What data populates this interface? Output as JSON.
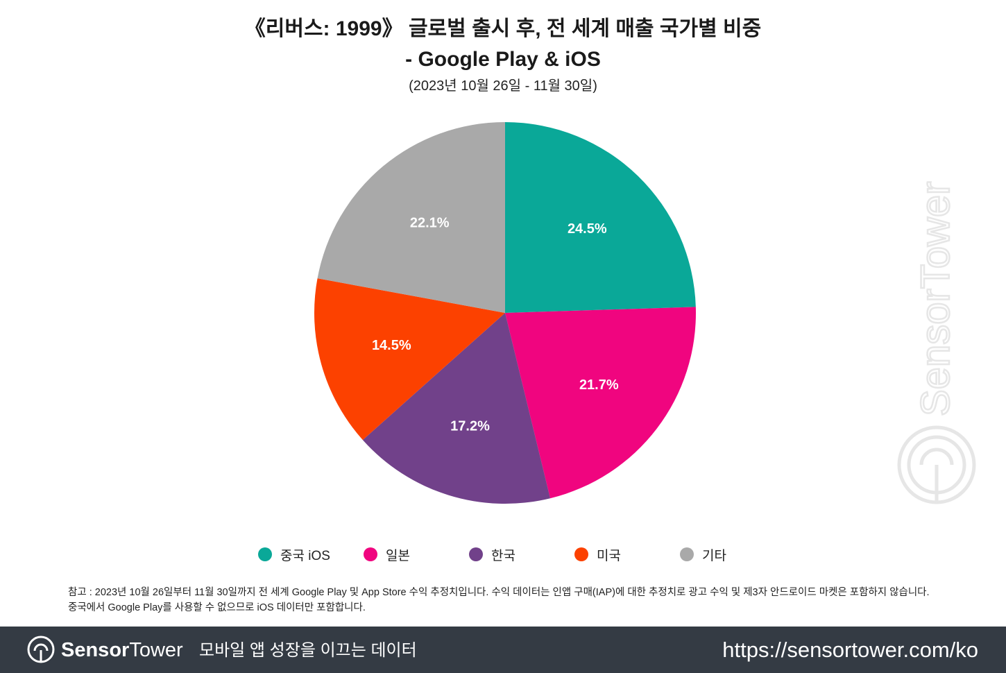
{
  "header": {
    "title_line1": "《리버스: 1999》 글로벌 출시 후, 전 세계 매출 국가별 비중",
    "title_line2": "- Google Play & iOS",
    "subtitle": "(2023년 10월 26일 - 11월 30일)"
  },
  "chart_data": {
    "type": "pie",
    "title": "《리버스: 1999》 글로벌 출시 후, 전 세계 매출 국가별 비중 - Google Play & iOS",
    "subtitle": "(2023년 10월 26일 - 11월 30일)",
    "slices": [
      {
        "label": "중국 iOS",
        "value": 24.5,
        "display": "24.5%",
        "color": "#0aa898"
      },
      {
        "label": "일본",
        "value": 21.7,
        "display": "21.7%",
        "color": "#f0057f"
      },
      {
        "label": "한국",
        "value": 17.2,
        "display": "17.2%",
        "color": "#71418a"
      },
      {
        "label": "미국",
        "value": 14.5,
        "display": "14.5%",
        "color": "#fc4100"
      },
      {
        "label": "기타",
        "value": 22.1,
        "display": "22.1%",
        "color": "#a9a9a9"
      }
    ],
    "start_angle": "12 o'clock",
    "direction": "clockwise",
    "legend_placement": "bottom"
  },
  "note": {
    "line1": "참고 : 2023년 10월 26일부터 11월 30일까지 전 세계 Google Play 및 App Store 수익 추정치입니다. 수익 데이터는 인앱 구매(IAP)에 대한 추정치로 광고 수익 및 제3자 안드로이드 마켓은 포함하지 않습니다.",
    "line2": "중국에서 Google Play를 사용할 수 없으므로 iOS 데이터만 포함합니다."
  },
  "watermark": {
    "text": "SensorTower",
    "icon": "sensor-tower-logo-icon"
  },
  "footer": {
    "brand_bold": "Sensor",
    "brand_regular": "Tower",
    "tagline": "모바일 앱 성장을 이끄는 데이터",
    "url": "https://sensortower.com/ko",
    "background": "#343b44"
  }
}
